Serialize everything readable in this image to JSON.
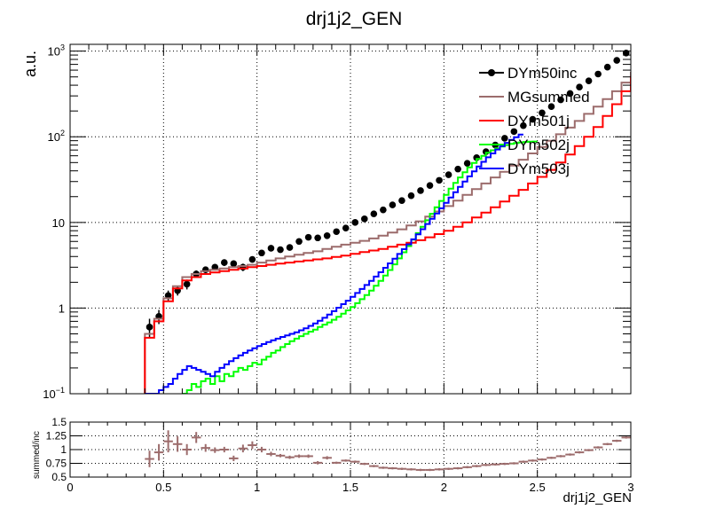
{
  "chart_data": [
    {
      "type": "line",
      "title": "drj1j2_GEN",
      "xlabel": "drj1j2_GEN",
      "ylabel": "a.u.",
      "xlim": [
        0,
        3
      ],
      "ylim": [
        0.1,
        1200
      ],
      "yscale": "log",
      "grid": true,
      "legend_position": "top-right",
      "x_ticks": [
        "0",
        "0.5",
        "1",
        "1.5",
        "2",
        "2.5",
        "3"
      ],
      "y_ticks": [
        {
          "v": 0.1,
          "b": "10",
          "e": "−1"
        },
        {
          "v": 1,
          "b": "1",
          "e": ""
        },
        {
          "v": 10,
          "b": "10",
          "e": ""
        },
        {
          "v": 100,
          "b": "10",
          "e": "2"
        },
        {
          "v": 1000,
          "b": "10",
          "e": "3"
        }
      ],
      "series": [
        {
          "name": "DYm50inc",
          "style": "markers",
          "color": "#000000",
          "x": [
            0.425,
            0.475,
            0.525,
            0.575,
            0.625,
            0.675,
            0.725,
            0.775,
            0.825,
            0.875,
            0.925,
            0.975,
            1.025,
            1.075,
            1.125,
            1.175,
            1.225,
            1.275,
            1.325,
            1.375,
            1.425,
            1.475,
            1.525,
            1.575,
            1.625,
            1.675,
            1.725,
            1.775,
            1.825,
            1.875,
            1.925,
            1.975,
            2.025,
            2.075,
            2.125,
            2.175,
            2.225,
            2.275,
            2.325,
            2.375,
            2.425,
            2.475,
            2.525,
            2.575,
            2.625,
            2.675,
            2.725,
            2.775,
            2.825,
            2.875,
            2.925,
            2.975
          ],
          "y": [
            0.6,
            0.8,
            1.4,
            1.6,
            1.9,
            2.5,
            2.8,
            3.0,
            3.4,
            3.3,
            3.0,
            3.7,
            4.4,
            5.0,
            4.8,
            5.1,
            6.0,
            6.7,
            6.6,
            7.0,
            7.8,
            8.6,
            10.0,
            11.0,
            12.6,
            14.0,
            16.0,
            18.0,
            20.5,
            23.5,
            27.0,
            31.0,
            36.0,
            42.0,
            49.0,
            57.0,
            67.0,
            80.0,
            96.0,
            115.0,
            135.0,
            160.0,
            190.0,
            225.0,
            270.0,
            320.0,
            380.0,
            450.0,
            540.0,
            650.0,
            780.0,
            950.0
          ],
          "err": [
            0.15,
            0.15,
            0.2,
            0.2,
            0.25,
            0.25,
            0.25,
            0.25,
            0.3,
            0.3,
            0.3,
            0.3,
            0.35,
            0.35,
            0.35,
            0.35,
            0.4,
            0.4,
            0.4,
            0.4,
            0.45,
            0.45,
            0.5,
            0.5,
            0.5,
            0.5,
            0.6,
            0.6,
            0.6,
            0.7,
            0.7,
            0.8,
            0.8,
            0.9,
            1,
            1,
            1.2,
            1.3,
            1.5,
            1.7,
            2,
            2.2,
            2.5,
            2.8,
            3,
            3.5,
            4,
            4.5,
            5,
            6,
            7,
            8
          ]
        },
        {
          "name": "MGsummed",
          "style": "step",
          "color": "#9c6c6c",
          "xstart": 0.0,
          "binw": 0.05,
          "y": [
            0.05,
            0.05,
            0.05,
            0.05,
            0.05,
            0.05,
            0.05,
            0.05,
            0.5,
            0.75,
            1.3,
            1.8,
            2.3,
            2.5,
            2.7,
            2.8,
            2.9,
            3.0,
            3.1,
            3.2,
            3.4,
            3.6,
            3.8,
            4.0,
            4.2,
            4.4,
            4.6,
            4.9,
            5.2,
            5.5,
            5.8,
            6.1,
            6.5,
            7.0,
            7.6,
            8.3,
            9.2,
            10.3,
            11.7,
            13.4,
            15.5,
            18.0,
            21.0,
            24.5,
            28.5,
            33.5,
            39.0,
            46.0,
            54.0,
            64.0,
            76.0,
            90.0,
            107.0,
            128.0,
            153.0,
            185.0,
            225.0,
            275.0,
            340.0,
            430.0,
            560.0,
            830.0
          ]
        },
        {
          "name": "DYm501j",
          "style": "step",
          "color": "#ff0000",
          "xstart": 0.0,
          "binw": 0.05,
          "y": [
            0.05,
            0.05,
            0.05,
            0.05,
            0.05,
            0.05,
            0.05,
            0.05,
            0.45,
            0.7,
            1.2,
            1.7,
            2.1,
            2.3,
            2.5,
            2.6,
            2.7,
            2.8,
            2.9,
            3.0,
            3.1,
            3.2,
            3.3,
            3.4,
            3.5,
            3.6,
            3.7,
            3.8,
            3.95,
            4.1,
            4.3,
            4.5,
            4.7,
            4.9,
            5.2,
            5.5,
            5.8,
            6.2,
            6.7,
            7.3,
            8.0,
            8.9,
            10.0,
            11.4,
            13.0,
            15.0,
            17.5,
            20.5,
            24.0,
            28.5,
            34.0,
            41.0,
            50.0,
            62.0,
            78.0,
            100.0,
            130.0,
            175.0,
            240.0,
            340.0,
            500.0,
            900.0
          ]
        },
        {
          "name": "DYm502j",
          "style": "step",
          "color": "#00ff00",
          "xstart": 0.6,
          "binw": 0.025,
          "y": [
            0.1,
            0.11,
            0.13,
            0.12,
            0.14,
            0.15,
            0.13,
            0.16,
            0.14,
            0.17,
            0.16,
            0.18,
            0.2,
            0.19,
            0.21,
            0.23,
            0.22,
            0.25,
            0.27,
            0.3,
            0.32,
            0.35,
            0.38,
            0.41,
            0.44,
            0.47,
            0.5,
            0.53,
            0.56,
            0.6,
            0.64,
            0.68,
            0.73,
            0.79,
            0.86,
            0.94,
            1.03,
            1.14,
            1.27,
            1.42,
            1.6,
            1.82,
            2.08,
            2.4,
            2.78,
            3.24,
            3.8,
            4.48,
            5.3,
            6.3,
            7.5,
            8.9,
            10.6,
            12.6,
            15.0,
            17.8,
            21.0,
            24.8,
            29.0,
            33.5,
            38.5,
            44.0,
            49.5,
            55.0,
            60.0,
            65.0,
            69.5,
            73.5,
            77.0,
            80.0,
            82.5,
            84.5,
            86.0,
            87.0,
            87.5,
            88.0
          ]
        },
        {
          "name": "DYm503j",
          "style": "step",
          "color": "#0000ff",
          "xstart": 0.4,
          "binw": 0.025,
          "y": [
            0.1,
            0.1,
            0.1,
            0.11,
            0.12,
            0.13,
            0.15,
            0.17,
            0.19,
            0.21,
            0.2,
            0.19,
            0.18,
            0.17,
            0.16,
            0.18,
            0.2,
            0.22,
            0.24,
            0.26,
            0.28,
            0.3,
            0.32,
            0.34,
            0.36,
            0.38,
            0.4,
            0.42,
            0.44,
            0.46,
            0.48,
            0.5,
            0.52,
            0.55,
            0.58,
            0.62,
            0.66,
            0.71,
            0.77,
            0.84,
            0.92,
            1.01,
            1.11,
            1.22,
            1.35,
            1.5,
            1.67,
            1.86,
            2.08,
            2.33,
            2.62,
            2.95,
            3.33,
            3.77,
            4.28,
            4.87,
            5.55,
            6.34,
            7.26,
            8.33,
            9.58,
            11.0,
            12.7,
            14.6,
            16.9,
            19.5,
            22.5,
            26.0,
            30.0,
            34.5,
            39.5,
            45.0,
            51.0,
            57.5,
            64.0,
            71.0,
            78.0,
            85.0,
            92.0,
            99.0,
            106.0
          ]
        }
      ]
    },
    {
      "type": "scatter",
      "ylabel": "summed/inc",
      "xlim": [
        0,
        3
      ],
      "ylim": [
        0.5,
        1.5
      ],
      "x_ticks": [
        "0",
        "0.5",
        "1",
        "1.5",
        "2",
        "2.5",
        "3"
      ],
      "y_ticks": [
        "0.5",
        "0.75",
        "1",
        "1.25",
        "1.5"
      ],
      "color": "#9c6c6c",
      "x": [
        0.425,
        0.475,
        0.525,
        0.575,
        0.625,
        0.675,
        0.725,
        0.775,
        0.825,
        0.875,
        0.925,
        0.975,
        1.025,
        1.075,
        1.125,
        1.175,
        1.225,
        1.275,
        1.325,
        1.375,
        1.425,
        1.475,
        1.525,
        1.575,
        1.625,
        1.675,
        1.725,
        1.775,
        1.825,
        1.875,
        1.925,
        1.975,
        2.025,
        2.075,
        2.125,
        2.175,
        2.225,
        2.275,
        2.325,
        2.375,
        2.425,
        2.475,
        2.525,
        2.575,
        2.625,
        2.675,
        2.725,
        2.775,
        2.825,
        2.875,
        2.925,
        2.975
      ],
      "y": [
        0.83,
        0.95,
        1.15,
        1.1,
        1.0,
        1.22,
        1.03,
        0.99,
        1.0,
        0.84,
        1.02,
        1.08,
        1.0,
        0.92,
        0.89,
        0.86,
        0.88,
        0.88,
        0.76,
        0.85,
        0.76,
        0.8,
        0.78,
        0.74,
        0.7,
        0.67,
        0.66,
        0.65,
        0.64,
        0.63,
        0.63,
        0.64,
        0.65,
        0.66,
        0.68,
        0.7,
        0.72,
        0.73,
        0.74,
        0.75,
        0.78,
        0.8,
        0.82,
        0.85,
        0.88,
        0.91,
        0.95,
        0.99,
        1.04,
        1.1,
        1.16,
        1.22
      ],
      "err": [
        0.15,
        0.15,
        0.2,
        0.14,
        0.1,
        0.1,
        0.07,
        0.05,
        0.05,
        0.05,
        0.07,
        0.07,
        0.05,
        0.04,
        0.03,
        0.03,
        0.03,
        0.03,
        0.03,
        0.03,
        0.02,
        0.02,
        0.02,
        0.02,
        0.02,
        0.02,
        0.02,
        0.02,
        0.02,
        0.02,
        0.02,
        0.02,
        0.02,
        0.02,
        0.02,
        0.02,
        0.02,
        0.02,
        0.02,
        0.02,
        0.02,
        0.02,
        0.02,
        0.02,
        0.02,
        0.02,
        0.02,
        0.02,
        0.02,
        0.02,
        0.02,
        0.02
      ]
    }
  ]
}
